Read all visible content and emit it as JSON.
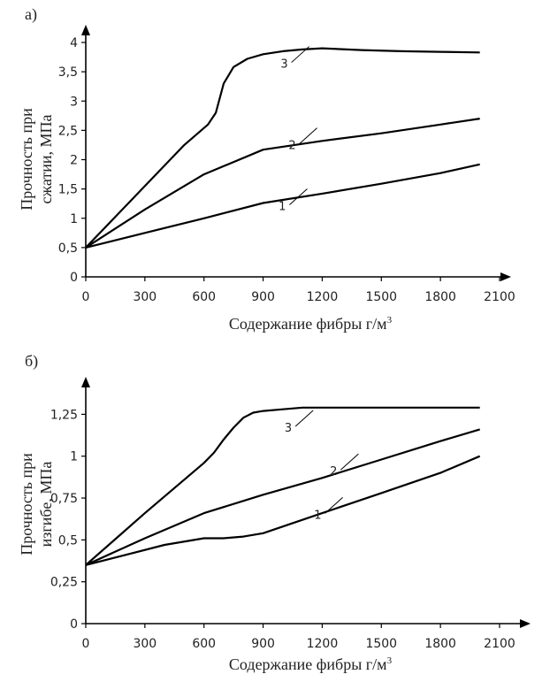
{
  "chart_data": [
    {
      "type": "line",
      "panel": "а)",
      "xlabel": "Содержание фибры г/м",
      "xlabel_sup": "3",
      "ylabel_lines": [
        "Прочность при",
        "сжатии, МПа"
      ],
      "xlim": [
        0,
        2100
      ],
      "ylim": [
        0,
        4
      ],
      "xticks": [
        "0",
        "300",
        "600",
        "900",
        "1200",
        "1500",
        "1800",
        "2100"
      ],
      "xtick_values": [
        0,
        300,
        600,
        900,
        1200,
        1500,
        1800,
        2100
      ],
      "yticks": [
        "0",
        "0,5",
        "1",
        "1,5",
        "2",
        "2,5",
        "3",
        "3,5",
        "4"
      ],
      "ytick_values": [
        0,
        0.5,
        1,
        1.5,
        2,
        2.5,
        3,
        3.5,
        4
      ],
      "series": [
        {
          "name": "1",
          "x": [
            0,
            300,
            600,
            900,
            1200,
            1500,
            1800,
            2000
          ],
          "y": [
            0.5,
            0.75,
            1.0,
            1.26,
            1.42,
            1.59,
            1.77,
            1.92
          ],
          "label_at": [
            1070,
            1.32
          ]
        },
        {
          "name": "2",
          "x": [
            0,
            300,
            600,
            900,
            1200,
            1500,
            1800,
            2000
          ],
          "y": [
            0.5,
            1.15,
            1.75,
            2.17,
            2.32,
            2.45,
            2.6,
            2.7
          ],
          "label_at": [
            1120,
            2.36
          ]
        },
        {
          "name": "3",
          "x": [
            0,
            300,
            500,
            620,
            660,
            700,
            750,
            820,
            900,
            1000,
            1100,
            1200,
            1400,
            1600,
            1800,
            2000
          ],
          "y": [
            0.5,
            1.55,
            2.25,
            2.6,
            2.8,
            3.3,
            3.58,
            3.72,
            3.8,
            3.85,
            3.88,
            3.9,
            3.87,
            3.85,
            3.84,
            3.83
          ],
          "label_at": [
            1080,
            3.75
          ]
        }
      ]
    },
    {
      "type": "line",
      "panel": "б)",
      "xlabel": "Содержание фибры г/м",
      "xlabel_sup": "3",
      "ylabel_lines": [
        "Прочность при",
        "изгибе, МПа"
      ],
      "xlim": [
        0,
        2100
      ],
      "ylim": [
        0,
        1.4
      ],
      "xticks": [
        "0",
        "300",
        "600",
        "900",
        "1200",
        "1500",
        "1800",
        "2100"
      ],
      "xtick_values": [
        0,
        300,
        600,
        900,
        1200,
        1500,
        1800,
        2100
      ],
      "yticks": [
        "0",
        "0,25",
        "0,5",
        "0,75",
        "1",
        "1,25"
      ],
      "ytick_values": [
        0,
        0.25,
        0.5,
        0.75,
        1,
        1.25
      ],
      "series": [
        {
          "name": "1",
          "x": [
            0,
            200,
            400,
            600,
            700,
            800,
            900,
            1200,
            1500,
            1800,
            2000
          ],
          "y": [
            0.35,
            0.41,
            0.47,
            0.51,
            0.51,
            0.52,
            0.54,
            0.66,
            0.78,
            0.9,
            1.0
          ],
          "label_at": [
            1250,
            0.69
          ]
        },
        {
          "name": "2",
          "x": [
            0,
            300,
            600,
            900,
            1200,
            1500,
            1800,
            2000
          ],
          "y": [
            0.35,
            0.51,
            0.66,
            0.77,
            0.87,
            0.98,
            1.09,
            1.16
          ],
          "label_at": [
            1330,
            0.95
          ]
        },
        {
          "name": "3",
          "x": [
            0,
            300,
            600,
            650,
            700,
            750,
            800,
            850,
            900,
            1000,
            1100,
            1200,
            1500,
            1800,
            2000
          ],
          "y": [
            0.35,
            0.66,
            0.96,
            1.02,
            1.1,
            1.17,
            1.23,
            1.26,
            1.27,
            1.28,
            1.29,
            1.29,
            1.29,
            1.29,
            1.29
          ],
          "label_at": [
            1100,
            1.21
          ]
        }
      ]
    }
  ]
}
